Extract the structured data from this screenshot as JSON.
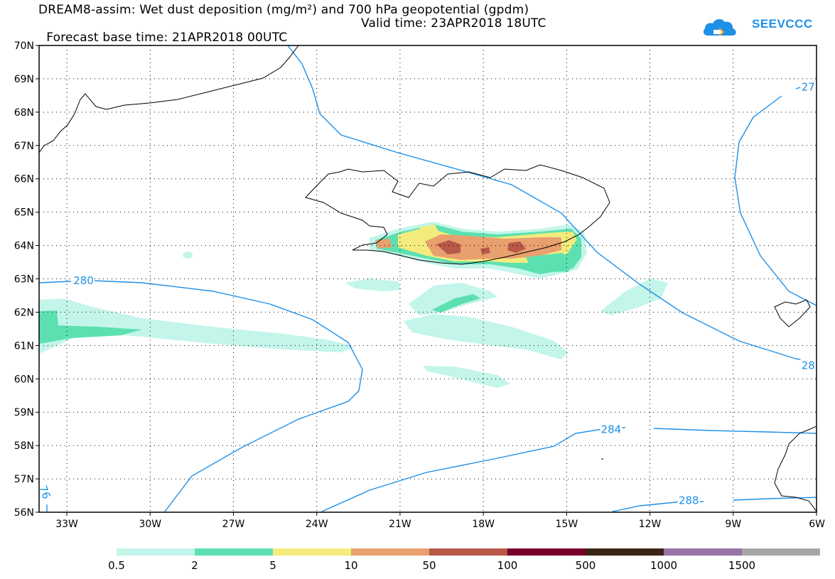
{
  "title": {
    "line1": "DREAM8-assim: Wet dust deposition (mg/m²) and 700 hPa geopotential (gpdm)",
    "base_time": "Forecast base time: 21APR2018 00UTC",
    "valid_time": "Valid time: 23APR2018 18UTC"
  },
  "logo": {
    "text": "SEEVCCC",
    "icon": "cloud-logo-icon",
    "color": "#1e90e8"
  },
  "axes": {
    "lat_labels": [
      "70N",
      "69N",
      "68N",
      "67N",
      "66N",
      "65N",
      "64N",
      "63N",
      "62N",
      "61N",
      "60N",
      "59N",
      "58N",
      "57N",
      "56N"
    ],
    "lat_values": [
      70,
      69,
      68,
      67,
      66,
      65,
      64,
      63,
      62,
      61,
      60,
      59,
      58,
      57,
      56
    ],
    "lon_labels": [
      "33W",
      "30W",
      "27W",
      "24W",
      "21W",
      "18W",
      "15W",
      "12W",
      "9W",
      "6W"
    ],
    "lon_values": [
      -33,
      -30,
      -27,
      -24,
      -21,
      -18,
      -15,
      -12,
      -9,
      -6
    ],
    "lon_range": [
      -34,
      -6
    ],
    "lat_range": [
      56,
      70
    ],
    "grid": "dotted"
  },
  "contour_labels": [
    {
      "text": "280",
      "lon": -32.4,
      "lat": 62.95
    },
    {
      "text": "284",
      "lon": -13.4,
      "lat": 58.48
    },
    {
      "text": "288",
      "lon": -10.6,
      "lat": 56.35
    },
    {
      "text": "27",
      "lon": -6.3,
      "lat": 68.75
    },
    {
      "text": "28",
      "lon": -6.3,
      "lat": 60.4
    },
    {
      "text": "76",
      "lon": -33.8,
      "lat": 56.6
    }
  ],
  "colorbar": {
    "labels": [
      "0.5",
      "2",
      "5",
      "10",
      "50",
      "100",
      "500",
      "1000",
      "1500"
    ],
    "colors": [
      "#c4f5ea",
      "#5de0b0",
      "#f3ec7c",
      "#e8a06e",
      "#b85848",
      "#780028",
      "#3a2414",
      "#9a72a8",
      "#a6a6a6"
    ]
  },
  "colors": {
    "contour": "#1e90e8",
    "coast": "#000000"
  }
}
